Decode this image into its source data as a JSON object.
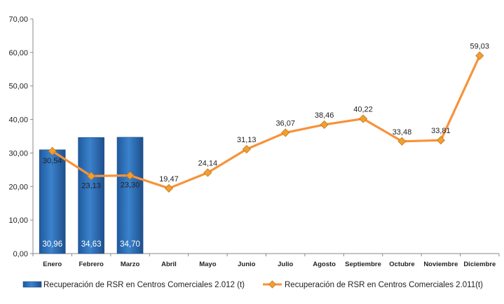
{
  "chart_data": {
    "type": "bar",
    "categories": [
      "Enero",
      "Febrero",
      "Marzo",
      "Abril",
      "Mayo",
      "Junio",
      "Julio",
      "Agosto",
      "Septiembre",
      "Octubre",
      "Noviembre",
      "Diciembre"
    ],
    "series": [
      {
        "name": "Recuperación de RSR en Centros Comerciales 2.012 (t)",
        "type": "bar",
        "color": "#2E6FB7",
        "values": [
          30.96,
          34.63,
          34.7,
          null,
          null,
          null,
          null,
          null,
          null,
          null,
          null,
          null
        ],
        "labels": [
          "30,96",
          "34,63",
          "34,70",
          "",
          "",
          "",
          "",
          "",
          "",
          "",
          "",
          ""
        ]
      },
      {
        "name": "Recuperación de RSR en Centros Comerciales 2.011(t)",
        "type": "line",
        "color": "#F7923A",
        "marker_color": "#F0A030",
        "values": [
          30.54,
          23.13,
          23.3,
          19.47,
          24.14,
          31.13,
          36.07,
          38.46,
          40.22,
          33.48,
          33.81,
          59.03
        ],
        "labels": [
          "30,54",
          "23,13",
          "23,30",
          "19,47",
          "24,14",
          "31,13",
          "36,07",
          "38,46",
          "40,22",
          "33,48",
          "33,81",
          "59,03"
        ]
      }
    ],
    "ylim": [
      0,
      70
    ],
    "yticks": [
      "0,00",
      "10,00",
      "20,00",
      "30,00",
      "40,00",
      "50,00",
      "60,00",
      "70,00"
    ],
    "grid": false,
    "legend": "bottom"
  }
}
